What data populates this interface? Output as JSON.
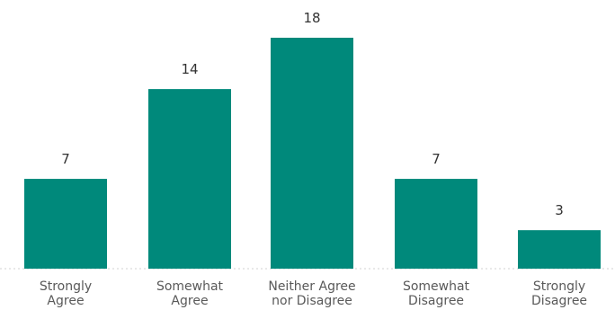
{
  "chart_data": {
    "type": "bar",
    "categories": [
      [
        "Strongly",
        "Agree"
      ],
      [
        "Somewhat",
        "Agree"
      ],
      [
        "Neither Agree",
        "nor Disagree"
      ],
      [
        "Somewhat",
        "Disagree"
      ],
      [
        "Strongly",
        "Disagree"
      ]
    ],
    "values": [
      7,
      14,
      18,
      7,
      3
    ],
    "ylim": [
      0,
      18
    ],
    "grid": false,
    "legend": "none",
    "colors": {
      "bar": "#00897b",
      "baseline": "#d0d0d0",
      "value_text": "#333333",
      "tick_text": "#595959"
    }
  }
}
